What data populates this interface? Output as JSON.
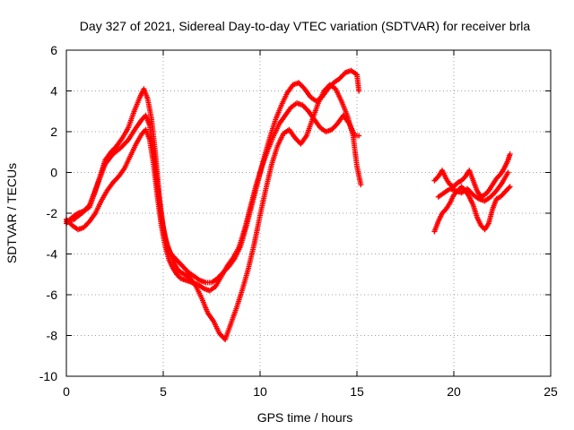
{
  "chart_data": {
    "type": "scatter",
    "title": "Day 327 of 2021, Sidereal Day-to-day VTEC variation (SDTVAR) for receiver brla",
    "xlabel": "GPS time / hours",
    "ylabel": "SDTVAR / TECUs",
    "xlim": [
      0,
      25
    ],
    "ylim": [
      -10,
      6
    ],
    "xticks": [
      0,
      5,
      10,
      15,
      20,
      25
    ],
    "yticks": [
      -10,
      -8,
      -6,
      -4,
      -2,
      0,
      2,
      4,
      6
    ],
    "xtick_labels": [
      "0",
      "5",
      "10",
      "15",
      "20",
      "25"
    ],
    "ytick_labels": [
      "-10",
      "-8",
      "-6",
      "-4",
      "-2",
      "0",
      "2",
      "4",
      "6"
    ],
    "grid": true,
    "grid_style": "dotted",
    "marker": "plus",
    "color": "#ff0000",
    "series": [
      {
        "x": [
          0.0,
          0.3,
          0.6,
          0.9,
          1.2,
          1.5,
          1.8,
          2.0,
          2.3,
          2.6,
          2.9,
          3.2,
          3.5,
          3.8,
          4.0,
          4.2,
          4.4,
          4.6,
          4.8,
          5.0,
          5.2,
          5.4,
          5.6,
          5.8,
          6.0,
          6.3,
          6.6,
          6.9,
          7.2,
          7.5,
          7.8,
          8.1,
          8.4,
          8.7,
          9.0,
          9.3,
          9.6,
          9.9,
          10.2,
          10.5,
          10.8,
          11.1,
          11.4,
          11.7,
          12.0,
          12.3,
          12.6,
          12.9,
          13.2,
          13.5,
          13.8,
          14.1,
          14.4,
          14.7,
          15.0,
          15.1
        ],
        "y": [
          -2.5,
          -2.2,
          -2.0,
          -1.9,
          -1.7,
          -0.9,
          0.0,
          0.6,
          1.0,
          1.3,
          1.7,
          2.2,
          3.0,
          3.7,
          4.1,
          3.6,
          2.6,
          0.9,
          -1.2,
          -2.7,
          -3.6,
          -4.0,
          -4.2,
          -4.4,
          -4.6,
          -4.9,
          -5.1,
          -5.3,
          -5.4,
          -5.4,
          -5.2,
          -4.9,
          -4.6,
          -4.2,
          -3.6,
          -2.6,
          -1.5,
          -0.4,
          0.7,
          1.7,
          2.6,
          3.3,
          3.9,
          4.3,
          4.4,
          4.1,
          3.7,
          3.5,
          3.7,
          4.1,
          4.4,
          4.6,
          4.9,
          5.0,
          4.8,
          4.0
        ]
      },
      {
        "x": [
          0.0,
          0.3,
          0.6,
          0.9,
          1.2,
          1.5,
          1.8,
          2.1,
          2.4,
          2.7,
          3.0,
          3.3,
          3.6,
          3.9,
          4.1,
          4.3,
          4.5,
          4.7,
          4.9,
          5.1,
          5.3,
          5.5,
          5.7,
          5.9,
          6.2,
          6.5,
          6.8,
          7.1,
          7.4,
          7.7,
          8.0,
          8.3,
          8.6,
          8.9,
          9.2,
          9.5,
          9.8,
          10.1,
          10.4,
          10.7,
          11.0,
          11.3,
          11.6,
          11.9,
          12.2,
          12.5,
          12.8,
          13.1,
          13.4,
          13.7,
          14.0,
          14.3,
          14.6,
          14.9,
          15.1
        ],
        "y": [
          -2.3,
          -2.6,
          -2.8,
          -2.7,
          -2.4,
          -2.0,
          -1.4,
          -0.9,
          -0.5,
          -0.2,
          0.2,
          0.8,
          1.4,
          1.9,
          2.1,
          1.6,
          0.4,
          -1.2,
          -2.6,
          -3.6,
          -4.3,
          -4.7,
          -5.0,
          -5.2,
          -5.3,
          -5.4,
          -5.5,
          -5.7,
          -5.8,
          -5.6,
          -5.1,
          -4.6,
          -4.2,
          -3.7,
          -2.8,
          -1.7,
          -0.6,
          0.3,
          1.1,
          1.8,
          2.4,
          2.8,
          3.2,
          3.4,
          3.3,
          3.0,
          2.6,
          2.2,
          2.0,
          2.1,
          2.4,
          2.8,
          2.4,
          1.8,
          1.8
        ]
      },
      {
        "x": [
          0.0,
          0.4,
          0.8,
          1.2,
          1.6,
          2.0,
          2.4,
          2.8,
          3.2,
          3.6,
          3.9,
          4.1,
          4.3,
          4.5,
          4.7,
          4.9,
          5.1,
          5.3,
          5.5,
          5.7,
          5.9,
          6.1,
          6.4,
          6.7,
          7.0,
          7.3,
          7.6,
          7.9,
          8.2,
          8.5,
          8.8,
          9.1,
          9.4,
          9.7,
          10.0,
          10.3,
          10.6,
          10.9,
          11.2,
          11.5,
          11.8,
          12.1,
          12.4,
          12.7,
          13.0,
          13.3,
          13.6,
          13.9,
          14.2,
          14.5,
          14.8,
          15.0,
          15.2
        ],
        "y": [
          -2.4,
          -2.3,
          -2.0,
          -1.6,
          -0.6,
          0.4,
          0.9,
          1.2,
          1.6,
          2.2,
          2.6,
          2.8,
          2.3,
          1.1,
          -0.6,
          -2.2,
          -3.2,
          -3.8,
          -4.3,
          -4.7,
          -4.9,
          -5.0,
          -5.2,
          -5.6,
          -6.2,
          -6.9,
          -7.3,
          -7.9,
          -8.2,
          -7.4,
          -6.6,
          -5.7,
          -4.7,
          -3.5,
          -2.1,
          -0.8,
          0.4,
          1.3,
          1.9,
          2.1,
          1.7,
          1.4,
          1.8,
          2.6,
          3.4,
          4.0,
          4.3,
          4.1,
          3.5,
          2.8,
          1.8,
          0.3,
          -0.6
        ]
      },
      {
        "x": [
          19.0,
          19.2,
          19.4,
          19.6,
          19.8,
          20.0,
          20.2,
          20.4,
          20.6,
          20.8,
          21.0,
          21.2,
          21.4,
          21.6,
          21.8,
          22.0,
          22.2,
          22.4,
          22.6,
          22.8,
          22.9
        ],
        "y": [
          -0.4,
          -0.2,
          0.1,
          -0.3,
          -0.6,
          -0.7,
          -0.5,
          -0.4,
          -0.2,
          0.1,
          -0.4,
          -0.9,
          -1.2,
          -1.1,
          -0.9,
          -0.6,
          -0.3,
          -0.1,
          0.2,
          0.6,
          0.9
        ]
      },
      {
        "x": [
          19.0,
          19.2,
          19.4,
          19.6,
          19.8,
          20.0,
          20.2,
          20.4,
          20.6,
          20.8,
          21.0,
          21.2,
          21.4,
          21.6,
          21.8,
          22.0,
          22.2,
          22.4,
          22.6,
          22.8,
          22.9
        ],
        "y": [
          -2.9,
          -2.4,
          -2.0,
          -1.8,
          -1.5,
          -1.1,
          -0.9,
          -0.7,
          -0.9,
          -1.2,
          -1.6,
          -2.2,
          -2.6,
          -2.8,
          -2.5,
          -1.8,
          -1.3,
          -1.2,
          -1.0,
          -0.8,
          -0.7
        ]
      },
      {
        "x": [
          19.2,
          19.5,
          19.8,
          20.1,
          20.4,
          20.7,
          21.0,
          21.3,
          21.6,
          21.9,
          22.2,
          22.5,
          22.8
        ],
        "y": [
          -1.2,
          -1.0,
          -0.8,
          -0.9,
          -1.0,
          -0.8,
          -1.1,
          -1.3,
          -1.4,
          -1.2,
          -0.9,
          -0.5,
          0.0
        ]
      }
    ]
  }
}
